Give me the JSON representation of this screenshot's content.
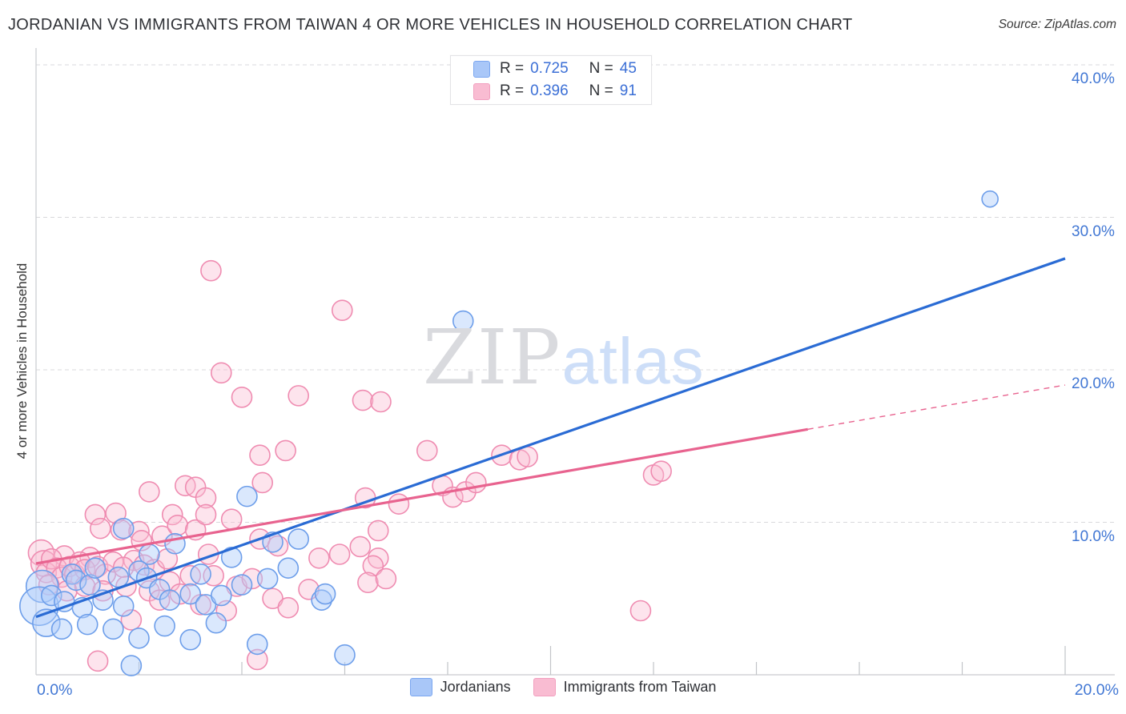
{
  "header": {
    "title": "JORDANIAN VS IMMIGRANTS FROM TAIWAN 4 OR MORE VEHICLES IN HOUSEHOLD CORRELATION CHART",
    "source": "Source: ZipAtlas.com"
  },
  "watermark": {
    "zip": "ZIP",
    "atlas": "atlas"
  },
  "legend_box": {
    "rows": [
      {
        "series": "Jordanians",
        "r_eq": "R =",
        "r_val": "0.725",
        "n_eq": "N =",
        "n_val": "45"
      },
      {
        "series": "Immigrants from Taiwan",
        "r_eq": "R =",
        "r_val": "0.396",
        "n_eq": "N =",
        "n_val": "91"
      }
    ]
  },
  "axes": {
    "y_title": "4 or more Vehicles in Household",
    "y_ticks": [
      {
        "label": "40.0%",
        "value": 40
      },
      {
        "label": "30.0%",
        "value": 30
      },
      {
        "label": "20.0%",
        "value": 20
      },
      {
        "label": "10.0%",
        "value": 10
      }
    ],
    "x_min_label": "0.0%",
    "x_max_label": "20.0%"
  },
  "bottom_legend": [
    {
      "label": "Jordanians",
      "color": "#a9c7f8"
    },
    {
      "label": "Immigrants from Taiwan",
      "color": "#f9bcd2"
    }
  ],
  "chart_data": {
    "type": "scatter",
    "title": "JORDANIAN VS IMMIGRANTS FROM TAIWAN 4 OR MORE VEHICLES IN HOUSEHOLD CORRELATION CHART",
    "xlabel": "",
    "ylabel": "4 or more Vehicles in Household",
    "x_range_pct": [
      0,
      20
    ],
    "y_range_pct": [
      0,
      41
    ],
    "x_tick_step_pct": 2,
    "y_gridlines_pct": [
      10,
      20,
      30,
      40
    ],
    "grid_dashed": true,
    "legend_position": "bottom-center",
    "series": [
      {
        "name": "Jordanians",
        "R": 0.725,
        "N": 45,
        "point_fill": "#aecbfa",
        "point_stroke": "#6d9eea",
        "fill_opacity": 0.45,
        "points": [
          [
            18.54,
            31.2,
            10
          ],
          [
            8.3,
            23.2
          ],
          [
            4.1,
            11.7
          ],
          [
            1.7,
            9.6
          ],
          [
            4.6,
            8.7
          ],
          [
            5.1,
            8.9
          ],
          [
            3.8,
            7.7
          ],
          [
            4.9,
            7.0
          ],
          [
            2.7,
            8.6
          ],
          [
            2.2,
            7.9
          ],
          [
            0.7,
            6.6
          ],
          [
            0.78,
            6.2
          ],
          [
            1.05,
            5.9
          ],
          [
            1.15,
            7.0
          ],
          [
            1.6,
            6.4
          ],
          [
            2.0,
            6.8
          ],
          [
            2.15,
            6.35
          ],
          [
            3.2,
            6.6
          ],
          [
            4.0,
            5.9
          ],
          [
            4.5,
            6.3
          ],
          [
            0.12,
            5.8,
            20
          ],
          [
            0.06,
            4.5,
            24
          ],
          [
            0.3,
            5.2
          ],
          [
            0.55,
            4.8
          ],
          [
            0.9,
            4.4
          ],
          [
            1.3,
            4.9
          ],
          [
            1.7,
            4.5
          ],
          [
            2.4,
            5.6
          ],
          [
            2.6,
            4.9
          ],
          [
            3.0,
            5.3
          ],
          [
            3.3,
            4.6
          ],
          [
            3.6,
            5.2
          ],
          [
            0.2,
            3.4,
            17
          ],
          [
            0.5,
            3.0
          ],
          [
            1.0,
            3.3
          ],
          [
            1.5,
            3.0
          ],
          [
            2.0,
            2.4
          ],
          [
            2.5,
            3.2
          ],
          [
            3.0,
            2.3
          ],
          [
            3.5,
            3.4
          ],
          [
            5.55,
            4.9
          ],
          [
            5.62,
            5.3
          ],
          [
            6.0,
            1.3
          ],
          [
            1.85,
            0.6
          ],
          [
            4.3,
            2.0
          ]
        ]
      },
      {
        "name": "Immigrants from Taiwan",
        "R": 0.396,
        "N": 91,
        "point_fill": "#f9bcd2",
        "point_stroke": "#ef8cb1",
        "fill_opacity": 0.4,
        "points": [
          [
            3.4,
            26.5
          ],
          [
            5.95,
            23.9
          ],
          [
            3.6,
            19.8
          ],
          [
            4.0,
            18.2
          ],
          [
            5.1,
            18.3
          ],
          [
            6.35,
            18.0
          ],
          [
            6.7,
            17.9
          ],
          [
            4.35,
            14.4
          ],
          [
            4.85,
            14.7
          ],
          [
            7.6,
            14.7
          ],
          [
            9.05,
            14.4
          ],
          [
            9.4,
            14.1
          ],
          [
            9.55,
            14.3
          ],
          [
            12.0,
            13.1
          ],
          [
            12.15,
            13.35
          ],
          [
            2.2,
            12.0
          ],
          [
            2.9,
            12.4
          ],
          [
            3.1,
            12.3
          ],
          [
            3.3,
            11.6
          ],
          [
            4.4,
            12.6
          ],
          [
            6.4,
            11.6
          ],
          [
            7.05,
            11.2
          ],
          [
            7.9,
            12.4
          ],
          [
            8.1,
            11.65
          ],
          [
            8.35,
            12.0
          ],
          [
            8.55,
            12.6
          ],
          [
            1.15,
            10.5
          ],
          [
            1.55,
            10.6
          ],
          [
            1.25,
            9.6
          ],
          [
            1.65,
            9.5
          ],
          [
            2.0,
            9.4
          ],
          [
            2.05,
            8.8
          ],
          [
            2.45,
            9.1
          ],
          [
            2.65,
            10.5
          ],
          [
            2.75,
            9.8
          ],
          [
            3.1,
            9.5
          ],
          [
            3.3,
            10.5
          ],
          [
            3.8,
            10.2
          ],
          [
            4.35,
            8.9
          ],
          [
            4.7,
            8.45
          ],
          [
            6.65,
            9.45
          ],
          [
            6.3,
            8.4
          ],
          [
            5.5,
            7.65
          ],
          [
            5.9,
            7.9
          ],
          [
            6.65,
            7.65
          ],
          [
            6.55,
            7.15
          ],
          [
            6.45,
            6.05
          ],
          [
            6.8,
            6.3
          ],
          [
            3.35,
            7.9
          ],
          [
            0.1,
            8.0,
            16
          ],
          [
            0.55,
            7.8
          ],
          [
            1.05,
            7.7
          ],
          [
            1.9,
            7.5
          ],
          [
            0.15,
            7.3,
            16
          ],
          [
            0.2,
            6.7
          ],
          [
            0.3,
            7.6
          ],
          [
            0.4,
            7.0
          ],
          [
            0.5,
            6.4
          ],
          [
            0.65,
            7.1
          ],
          [
            0.75,
            6.6
          ],
          [
            0.85,
            7.4
          ],
          [
            0.95,
            6.9
          ],
          [
            1.2,
            7.1
          ],
          [
            1.35,
            6.6
          ],
          [
            1.5,
            7.4
          ],
          [
            1.7,
            7.05
          ],
          [
            2.1,
            7.2
          ],
          [
            2.3,
            6.9
          ],
          [
            2.55,
            7.6
          ],
          [
            0.25,
            5.9
          ],
          [
            0.6,
            5.5
          ],
          [
            0.95,
            5.8
          ],
          [
            1.3,
            5.5
          ],
          [
            1.75,
            5.8
          ],
          [
            2.2,
            5.5
          ],
          [
            2.6,
            6.1
          ],
          [
            3.0,
            6.5
          ],
          [
            3.45,
            6.5
          ],
          [
            3.9,
            5.8
          ],
          [
            4.2,
            6.3
          ],
          [
            4.6,
            5.0
          ],
          [
            4.9,
            4.4
          ],
          [
            5.3,
            5.6
          ],
          [
            2.4,
            4.9
          ],
          [
            2.8,
            5.3
          ],
          [
            3.2,
            4.6
          ],
          [
            3.7,
            4.2
          ],
          [
            4.3,
            1.0
          ],
          [
            1.2,
            0.9
          ],
          [
            1.85,
            3.6
          ],
          [
            11.75,
            4.2
          ]
        ]
      }
    ],
    "trend_lines": [
      {
        "series": "Jordanians",
        "style": "solid",
        "color": "#2a6bd4",
        "x_start_pct": 0,
        "y_start_pct": 3.8,
        "x_end_pct": 20,
        "y_end_pct": 27.3
      },
      {
        "series": "Immigrants from Taiwan",
        "style": "solid",
        "color": "#e8638f",
        "x_start_pct": 0,
        "y_start_pct": 7.3,
        "x_end_pct": 15,
        "y_end_pct": 16.1
      },
      {
        "series": "Immigrants from Taiwan",
        "style": "dashed",
        "color": "#e8638f",
        "x_start_pct": 15,
        "y_start_pct": 16.1,
        "x_end_pct": 20,
        "y_end_pct": 19.0
      }
    ],
    "colors": {
      "axis_line": "#c9cbcf",
      "gridline": "#d9d9dc",
      "tick_label_blue": "#4177d4",
      "watermark_zip": "#d9dade",
      "watermark_atlas": "#cddef8"
    }
  }
}
